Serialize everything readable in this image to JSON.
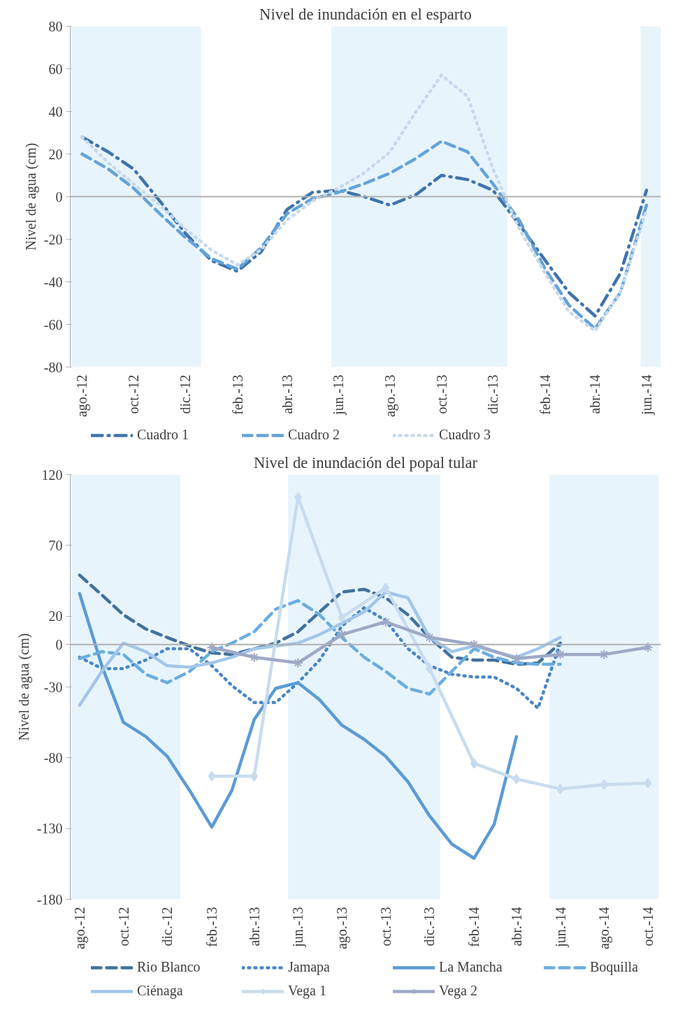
{
  "chart_data": [
    {
      "type": "line",
      "title": "Nivel de inundación en el esparto",
      "ylabel": "Nivel de agua (cm)",
      "xlim": [
        "2012-07-18",
        "2014-06-18"
      ],
      "ylim": [
        -80,
        80
      ],
      "yticks": [
        -80,
        -60,
        -40,
        -20,
        0,
        20,
        40,
        60,
        80
      ],
      "xticks": [
        {
          "value": "2012-08",
          "label": "ago.-12"
        },
        {
          "value": "2012-10",
          "label": "oct.-12"
        },
        {
          "value": "2012-12",
          "label": "dic.-12"
        },
        {
          "value": "2013-02",
          "label": "feb.-13"
        },
        {
          "value": "2013-04",
          "label": "abr.-13"
        },
        {
          "value": "2013-06",
          "label": "jun.-13"
        },
        {
          "value": "2013-08",
          "label": "ago.-13"
        },
        {
          "value": "2013-10",
          "label": "oct.-13"
        },
        {
          "value": "2013-12",
          "label": "dic.-13"
        },
        {
          "value": "2014-02",
          "label": "feb.-14"
        },
        {
          "value": "2014-04",
          "label": "abr.-14"
        },
        {
          "value": "2014-06",
          "label": "jun.-14"
        }
      ],
      "x": [
        "2012-08",
        "2012-09",
        "2012-10",
        "2012-11",
        "2012-12",
        "2013-01",
        "2013-02",
        "2013-03",
        "2013-04",
        "2013-05",
        "2013-06",
        "2013-07",
        "2013-08",
        "2013-09",
        "2013-10",
        "2013-11",
        "2013-12",
        "2014-01",
        "2014-02",
        "2014-03",
        "2014-04",
        "2014-05",
        "2014-06"
      ],
      "series": [
        {
          "name": "Cuadro 1",
          "color": "#3f73ad",
          "line_style": "dashdot",
          "values": [
            28,
            21,
            13,
            -2,
            -17,
            -30,
            -35,
            -26,
            -6,
            2,
            3,
            0,
            -4,
            1,
            10,
            8,
            3,
            -13,
            -30,
            -45,
            -56,
            -36,
            3
          ]
        },
        {
          "name": "Cuadro 2",
          "color": "#64a3d9",
          "line_style": "dashed",
          "values": [
            20,
            13,
            4,
            -8,
            -19,
            -29,
            -34,
            -24,
            -8,
            -1,
            2,
            6,
            11,
            18,
            26,
            21,
            6,
            -11,
            -34,
            -51,
            -62,
            -45,
            -4
          ]
        },
        {
          "name": "Cuadro 3",
          "color": "#c6d9ec",
          "line_style": "dotted",
          "values": [
            28,
            16,
            6,
            -4,
            -15,
            -25,
            -32,
            -25,
            -11,
            -2,
            4,
            11,
            21,
            40,
            57,
            47,
            13,
            -15,
            -36,
            -54,
            -63,
            -45,
            -6
          ]
        }
      ],
      "ref_lines": [
        {
          "axis": "y",
          "value": 0,
          "color": "#b0b0b0"
        }
      ],
      "bands": [
        {
          "axis": "x",
          "from": "2012-07-18",
          "to": "2012-12-20",
          "color": "#e8f4fc"
        },
        {
          "axis": "x",
          "from": "2013-05-23",
          "to": "2013-12-18",
          "color": "#e8f4fc"
        },
        {
          "axis": "x",
          "from": "2014-05-25",
          "to": "2014-06-18",
          "color": "#e8f4fc"
        }
      ],
      "legend": "bottom",
      "grid": false,
      "marker": "none"
    },
    {
      "type": "line",
      "title": "Nivel de inundación del popal tular",
      "ylabel": "Nivel de agua (cm)",
      "xlim": [
        "2012-07-19",
        "2014-10-19"
      ],
      "ylim": [
        -180,
        120
      ],
      "yticks": [
        -180,
        -130,
        -80,
        -30,
        0,
        20,
        70,
        120
      ],
      "xticks": [
        {
          "value": "2012-08",
          "label": "ago.-12"
        },
        {
          "value": "2012-10",
          "label": "oct.-12"
        },
        {
          "value": "2012-12",
          "label": "dic.-12"
        },
        {
          "value": "2013-02",
          "label": "feb.-13"
        },
        {
          "value": "2013-04",
          "label": "abr.-13"
        },
        {
          "value": "2013-06",
          "label": "jun.-13"
        },
        {
          "value": "2013-08",
          "label": "ago.-13"
        },
        {
          "value": "2013-10",
          "label": "oct.-13"
        },
        {
          "value": "2013-12",
          "label": "dic.-13"
        },
        {
          "value": "2014-02",
          "label": "feb.-14"
        },
        {
          "value": "2014-04",
          "label": "abr.-14"
        },
        {
          "value": "2014-06",
          "label": "jun.-14"
        },
        {
          "value": "2014-08",
          "label": "ago.-14"
        },
        {
          "value": "2014-10",
          "label": "oct.-14"
        }
      ],
      "x": [
        "2012-08",
        "2012-09",
        "2012-10",
        "2012-11",
        "2012-12",
        "2013-01",
        "2013-02",
        "2013-03",
        "2013-04",
        "2013-05",
        "2013-06",
        "2013-07",
        "2013-08",
        "2013-09",
        "2013-10",
        "2013-11",
        "2013-12",
        "2014-01",
        "2014-02",
        "2014-03",
        "2014-04",
        "2014-05",
        "2014-06"
      ],
      "series": [
        {
          "name": "Rio Blanco",
          "color": "#41719c",
          "line_style": "dashed",
          "values": [
            49,
            35,
            21,
            11,
            5,
            -1,
            -6,
            -7,
            -3,
            1,
            9,
            23,
            37,
            39,
            33,
            21,
            5,
            -9,
            -11,
            -11,
            -14,
            -13,
            1
          ]
        },
        {
          "name": "Jamapa",
          "color": "#4a86c5",
          "line_style": "dotted",
          "values": [
            -9,
            -17,
            -17,
            -11,
            -3,
            -3,
            -15,
            -29,
            -41,
            -41,
            -27,
            -11,
            13,
            26,
            17,
            -3,
            -15,
            -21,
            -23,
            -23,
            -31,
            -45,
            1
          ]
        },
        {
          "name": "La Mancha",
          "color": "#5b9bd5",
          "line_style": "solid",
          "values": [
            36,
            -15,
            -55,
            -65,
            -79,
            -103,
            -129,
            -103,
            -53,
            -31,
            -27,
            -39,
            -57,
            -67,
            -79,
            -97,
            -121,
            -141,
            -151,
            -127,
            -65,
            null,
            null
          ]
        },
        {
          "name": "Boquilla",
          "color": "#6aaee0",
          "line_style": "dashed",
          "values": [
            -10,
            -5,
            -7,
            -21,
            -27,
            -19,
            -5,
            1,
            9,
            25,
            31,
            21,
            5,
            -9,
            -19,
            -31,
            -35,
            -19,
            -3,
            -9,
            -13,
            -14,
            -14
          ]
        },
        {
          "name": "Ciénaga",
          "color": "#a3c6e8",
          "line_style": "solid",
          "values": [
            -43,
            -19,
            1,
            -5,
            -15,
            -16,
            -13,
            -9,
            -3,
            -1,
            1,
            7,
            15,
            23,
            37,
            33,
            5,
            -5,
            -1,
            -5,
            -9,
            -3,
            5
          ]
        },
        {
          "name": "Vega 1",
          "color": "#c8dcee",
          "line_style": "solid",
          "marker": "diamond",
          "x": [
            "2013-02",
            "2013-04",
            "2013-06",
            "2013-08",
            "2013-10",
            "2013-12",
            "2014-02",
            "2014-04",
            "2014-06",
            "2014-08",
            "2014-10"
          ],
          "values": [
            -93,
            -93,
            104,
            19,
            40,
            -17,
            -84,
            -95,
            -102,
            -99,
            -98
          ]
        },
        {
          "name": "Vega 2",
          "color": "#9ea9c6",
          "line_style": "solid",
          "marker": "cross",
          "x": [
            "2013-02",
            "2013-04",
            "2013-06",
            "2013-08",
            "2013-10",
            "2013-12",
            "2014-02",
            "2014-04",
            "2014-06",
            "2014-08",
            "2014-10"
          ],
          "values": [
            -2,
            -9,
            -13,
            7,
            16,
            5,
            0,
            -10,
            -7,
            -7,
            -2
          ]
        }
      ],
      "ref_lines": [
        {
          "axis": "y",
          "value": 0,
          "color": "#b0b0b0"
        }
      ],
      "bands": [
        {
          "axis": "x",
          "from": "2012-07-19",
          "to": "2012-12-19",
          "color": "#e8f4fc"
        },
        {
          "axis": "x",
          "from": "2013-05-18",
          "to": "2013-12-16",
          "color": "#e8f4fc"
        },
        {
          "axis": "x",
          "from": "2014-05-17",
          "to": "2014-10-16",
          "color": "#e8f4fc"
        }
      ],
      "legend": "bottom",
      "grid": false,
      "marker": "none"
    }
  ]
}
